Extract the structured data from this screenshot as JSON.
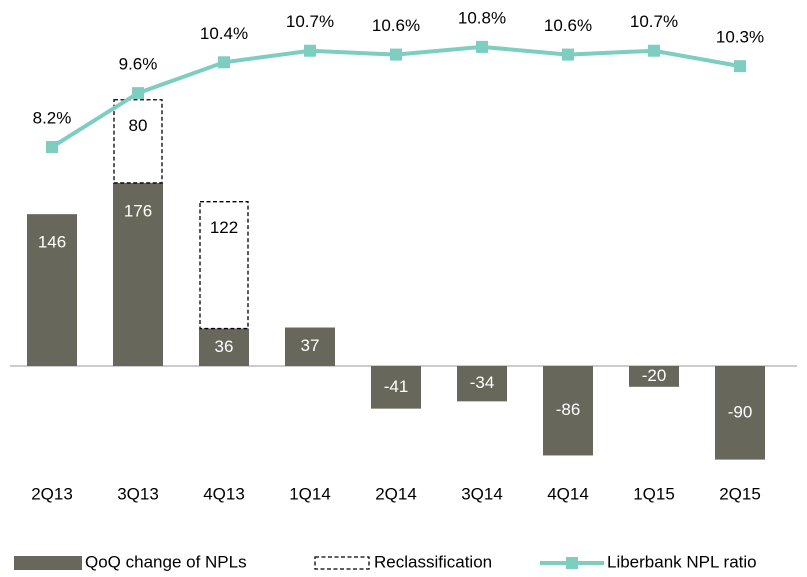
{
  "chart_data": {
    "type": "bar",
    "categories": [
      "2Q13",
      "3Q13",
      "4Q13",
      "1Q14",
      "2Q14",
      "3Q14",
      "4Q14",
      "1Q15",
      "2Q15"
    ],
    "series": [
      {
        "name": "QoQ change of NPLs",
        "type": "bar",
        "color": "#67675b",
        "values": [
          146,
          176,
          36,
          37,
          -41,
          -34,
          -86,
          -20,
          -90
        ]
      },
      {
        "name": "Reclassification",
        "type": "bar",
        "stacked": true,
        "style": "dashed",
        "color": "#000000",
        "values": [
          null,
          80,
          122,
          null,
          null,
          null,
          null,
          null,
          null
        ]
      },
      {
        "name": "Liberbank NPL ratio",
        "type": "line",
        "axis": "y2",
        "color": "#7ecdc1",
        "values": [
          8.2,
          9.6,
          10.4,
          10.7,
          10.6,
          10.8,
          10.6,
          10.7,
          10.3
        ],
        "value_labels": [
          "8.2%",
          "9.6%",
          "10.4%",
          "10.7%",
          "10.6%",
          "10.8%",
          "10.6%",
          "10.7%",
          "10.3%"
        ]
      }
    ],
    "legend": "bottom"
  }
}
